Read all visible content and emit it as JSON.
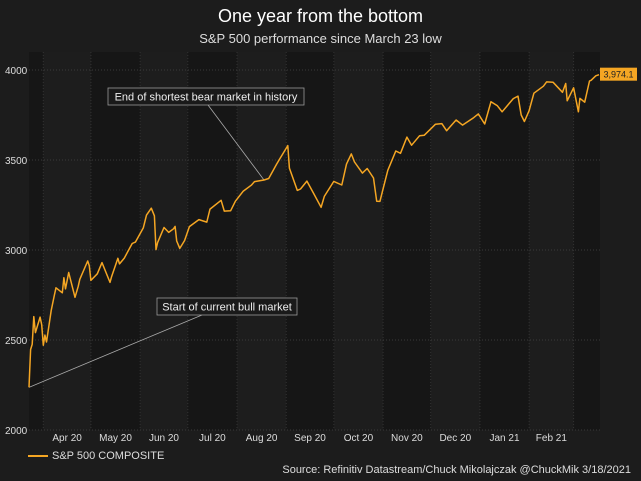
{
  "chart_data": {
    "type": "line",
    "title": "One year from the bottom",
    "subtitle": "S&P 500 performance since March 23 low",
    "xlabel": "",
    "ylabel": "",
    "ylim": [
      2000,
      4000
    ],
    "y_ticks": [
      2000,
      2500,
      3000,
      3500,
      4000
    ],
    "x_tick_labels": [
      "Apr 20",
      "May 20",
      "Jun 20",
      "Jul 20",
      "Aug 20",
      "Sep 20",
      "Oct 20",
      "Nov 20",
      "Dec 20",
      "Jan 21",
      "Feb 21"
    ],
    "x_range": [
      "2020-03-23",
      "2021-03-17"
    ],
    "grid": true,
    "legend": {
      "position": "bottom-left",
      "entries": [
        "S&P 500 COMPOSITE"
      ]
    },
    "last_value_label": "3,974.1",
    "annotations": [
      {
        "text": "End of shortest bear market in history",
        "date": "2020-08-18",
        "value": 3389
      },
      {
        "text": "Start of current bull market",
        "date": "2020-03-23",
        "value": 2237
      }
    ],
    "series": [
      {
        "name": "S&P 500 COMPOSITE",
        "color": "#f5a623",
        "points": [
          [
            "2020-03-23",
            2237
          ],
          [
            "2020-03-24",
            2447
          ],
          [
            "2020-03-25",
            2476
          ],
          [
            "2020-03-26",
            2630
          ],
          [
            "2020-03-27",
            2541
          ],
          [
            "2020-03-30",
            2627
          ],
          [
            "2020-03-31",
            2585
          ],
          [
            "2020-04-01",
            2471
          ],
          [
            "2020-04-02",
            2527
          ],
          [
            "2020-04-03",
            2489
          ],
          [
            "2020-04-06",
            2664
          ],
          [
            "2020-04-08",
            2750
          ],
          [
            "2020-04-09",
            2790
          ],
          [
            "2020-04-13",
            2762
          ],
          [
            "2020-04-14",
            2846
          ],
          [
            "2020-04-15",
            2784
          ],
          [
            "2020-04-17",
            2875
          ],
          [
            "2020-04-21",
            2737
          ],
          [
            "2020-04-23",
            2798
          ],
          [
            "2020-04-24",
            2837
          ],
          [
            "2020-04-29",
            2939
          ],
          [
            "2020-04-30",
            2912
          ],
          [
            "2020-05-01",
            2831
          ],
          [
            "2020-05-05",
            2868
          ],
          [
            "2020-05-08",
            2930
          ],
          [
            "2020-05-13",
            2820
          ],
          [
            "2020-05-14",
            2852
          ],
          [
            "2020-05-18",
            2954
          ],
          [
            "2020-05-19",
            2923
          ],
          [
            "2020-05-22",
            2955
          ],
          [
            "2020-05-27",
            3036
          ],
          [
            "2020-05-29",
            3044
          ],
          [
            "2020-06-03",
            3123
          ],
          [
            "2020-06-05",
            3194
          ],
          [
            "2020-06-08",
            3232
          ],
          [
            "2020-06-10",
            3190
          ],
          [
            "2020-06-11",
            3002
          ],
          [
            "2020-06-12",
            3041
          ],
          [
            "2020-06-16",
            3125
          ],
          [
            "2020-06-19",
            3098
          ],
          [
            "2020-06-22",
            3118
          ],
          [
            "2020-06-23",
            3131
          ],
          [
            "2020-06-24",
            3050
          ],
          [
            "2020-06-26",
            3009
          ],
          [
            "2020-06-29",
            3053
          ],
          [
            "2020-07-02",
            3130
          ],
          [
            "2020-07-08",
            3169
          ],
          [
            "2020-07-13",
            3155
          ],
          [
            "2020-07-15",
            3227
          ],
          [
            "2020-07-22",
            3276
          ],
          [
            "2020-07-24",
            3216
          ],
          [
            "2020-07-28",
            3218
          ],
          [
            "2020-07-31",
            3271
          ],
          [
            "2020-08-05",
            3327
          ],
          [
            "2020-08-10",
            3360
          ],
          [
            "2020-08-12",
            3380
          ],
          [
            "2020-08-18",
            3389
          ],
          [
            "2020-08-21",
            3397
          ],
          [
            "2020-08-26",
            3478
          ],
          [
            "2020-08-28",
            3508
          ],
          [
            "2020-09-02",
            3580
          ],
          [
            "2020-09-03",
            3455
          ],
          [
            "2020-09-08",
            3331
          ],
          [
            "2020-09-10",
            3339
          ],
          [
            "2020-09-14",
            3383
          ],
          [
            "2020-09-18",
            3319
          ],
          [
            "2020-09-23",
            3237
          ],
          [
            "2020-09-25",
            3298
          ],
          [
            "2020-10-01",
            3381
          ],
          [
            "2020-10-06",
            3361
          ],
          [
            "2020-10-09",
            3477
          ],
          [
            "2020-10-12",
            3534
          ],
          [
            "2020-10-14",
            3489
          ],
          [
            "2020-10-19",
            3427
          ],
          [
            "2020-10-22",
            3453
          ],
          [
            "2020-10-26",
            3400
          ],
          [
            "2020-10-28",
            3271
          ],
          [
            "2020-10-30",
            3270
          ],
          [
            "2020-11-04",
            3443
          ],
          [
            "2020-11-09",
            3550
          ],
          [
            "2020-11-12",
            3537
          ],
          [
            "2020-11-16",
            3627
          ],
          [
            "2020-11-19",
            3582
          ],
          [
            "2020-11-24",
            3635
          ],
          [
            "2020-11-27",
            3638
          ],
          [
            "2020-12-04",
            3699
          ],
          [
            "2020-12-08",
            3702
          ],
          [
            "2020-12-11",
            3663
          ],
          [
            "2020-12-17",
            3722
          ],
          [
            "2020-12-21",
            3694
          ],
          [
            "2020-12-28",
            3735
          ],
          [
            "2020-12-31",
            3756
          ],
          [
            "2021-01-04",
            3700
          ],
          [
            "2021-01-08",
            3824
          ],
          [
            "2021-01-12",
            3801
          ],
          [
            "2021-01-15",
            3768
          ],
          [
            "2021-01-22",
            3841
          ],
          [
            "2021-01-25",
            3855
          ],
          [
            "2021-01-27",
            3750
          ],
          [
            "2021-01-29",
            3714
          ],
          [
            "2021-02-01",
            3774
          ],
          [
            "2021-02-04",
            3871
          ],
          [
            "2021-02-10",
            3910
          ],
          [
            "2021-02-12",
            3934
          ],
          [
            "2021-02-16",
            3932
          ],
          [
            "2021-02-22",
            3876
          ],
          [
            "2021-02-24",
            3925
          ],
          [
            "2021-02-25",
            3829
          ],
          [
            "2021-03-01",
            3901
          ],
          [
            "2021-03-04",
            3768
          ],
          [
            "2021-03-05",
            3842
          ],
          [
            "2021-03-08",
            3821
          ],
          [
            "2021-03-11",
            3939
          ],
          [
            "2021-03-12",
            3943
          ],
          [
            "2021-03-15",
            3968
          ],
          [
            "2021-03-17",
            3974
          ]
        ]
      }
    ]
  },
  "footer": {
    "source": "Source: Refinitiv Datastream/Chuck Mikolajczak @ChuckMik 3/18/2021"
  }
}
